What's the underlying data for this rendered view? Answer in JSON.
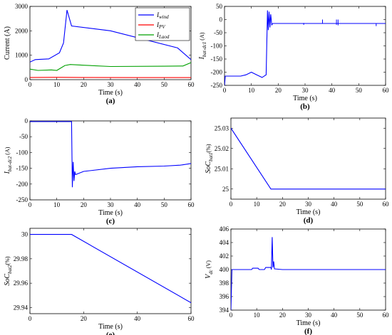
{
  "chart_data": [
    {
      "id": "a",
      "panel_label": "(a)",
      "type": "line",
      "xlabel": "Time (s)",
      "ylabel": "Current (A)",
      "xlim": [
        0,
        60
      ],
      "ylim": [
        0,
        3000
      ],
      "xticks": [
        "0",
        "10",
        "20",
        "30",
        "40",
        "50",
        "60"
      ],
      "yticks": [
        "0",
        "1000",
        "2000",
        "3000"
      ],
      "grid": false,
      "legend": "top-right",
      "series": [
        {
          "name": "I_wind",
          "label": "I",
          "sub": "wind",
          "color": "#0000ff",
          "points": [
            [
              0,
              720
            ],
            [
              2,
              820
            ],
            [
              7,
              850
            ],
            [
              11,
              1100
            ],
            [
              12.5,
              1500
            ],
            [
              13.8,
              2850
            ],
            [
              15.5,
              2200
            ],
            [
              30,
              2000
            ],
            [
              55,
              1300
            ],
            [
              60,
              820
            ]
          ]
        },
        {
          "name": "I_PV",
          "label": "I",
          "sub": "PV",
          "color": "#ff0000",
          "points": [
            [
              0,
              90
            ],
            [
              10,
              95
            ],
            [
              20,
              90
            ],
            [
              40,
              85
            ],
            [
              60,
              85
            ]
          ]
        },
        {
          "name": "I_Laod",
          "label": "I",
          "sub": "Laod",
          "color": "#00a000",
          "points": [
            [
              0,
              430
            ],
            [
              3,
              380
            ],
            [
              8,
              400
            ],
            [
              10,
              380
            ],
            [
              13,
              580
            ],
            [
              15,
              620
            ],
            [
              20,
              590
            ],
            [
              30,
              540
            ],
            [
              50,
              550
            ],
            [
              57,
              560
            ],
            [
              60,
              700
            ]
          ]
        }
      ]
    },
    {
      "id": "b",
      "panel_label": "(b)",
      "type": "line",
      "xlabel": "Time (s)",
      "ylabel": "I",
      "ylabel_sub": "bat-dc1",
      "ylabel_unit": " (A)",
      "xlim": [
        0,
        60
      ],
      "ylim": [
        -250,
        50
      ],
      "xticks": [
        "0",
        "10",
        "20",
        "30",
        "40",
        "50",
        "60"
      ],
      "yticks": [
        "-250",
        "-200",
        "-150",
        "-100",
        "-50",
        "0",
        "50"
      ],
      "grid": false,
      "series": [
        {
          "color": "#0000ff",
          "points": [
            [
              0,
              -250
            ],
            [
              0.3,
              -215
            ],
            [
              6,
              -215
            ],
            [
              8,
              -210
            ],
            [
              10,
              -200
            ],
            [
              12,
              -210
            ],
            [
              14,
              -220
            ],
            [
              15.5,
              -210
            ],
            [
              16,
              35
            ],
            [
              16.3,
              -40
            ],
            [
              16.6,
              30
            ],
            [
              16.9,
              -30
            ],
            [
              17.2,
              20
            ],
            [
              17.6,
              -20
            ],
            [
              18,
              -15
            ],
            [
              60,
              -15
            ]
          ],
          "spikes": [
            [
              29.5,
              -13,
              -20
            ],
            [
              36.5,
              0,
              -15
            ],
            [
              41.7,
              0,
              -20
            ],
            [
              42.3,
              0,
              -22
            ],
            [
              56.5,
              -15,
              -25
            ]
          ]
        }
      ]
    },
    {
      "id": "c",
      "panel_label": "(c)",
      "type": "line",
      "xlabel": "Time (s)",
      "ylabel": "I",
      "ylabel_sub": "bat-dc2",
      "ylabel_unit": " (A)",
      "xlim": [
        0,
        60
      ],
      "ylim": [
        -250,
        0
      ],
      "xticks": [
        "0",
        "10",
        "20",
        "30",
        "40",
        "50",
        "60"
      ],
      "yticks": [
        "-250",
        "-200",
        "-150",
        "-100",
        "-50",
        "0"
      ],
      "grid": false,
      "series": [
        {
          "color": "#0000ff",
          "points": [
            [
              0,
              -2
            ],
            [
              15.5,
              -2
            ],
            [
              15.8,
              -210
            ],
            [
              16.1,
              -130
            ],
            [
              16.4,
              -190
            ],
            [
              16.7,
              -160
            ],
            [
              17,
              -170
            ],
            [
              20,
              -160
            ],
            [
              30,
              -150
            ],
            [
              40,
              -145
            ],
            [
              50,
              -143
            ],
            [
              56,
              -140
            ],
            [
              60,
              -135
            ]
          ]
        }
      ]
    },
    {
      "id": "d",
      "panel_label": "(d)",
      "type": "line",
      "xlabel": "Time (s)",
      "ylabel": "SoC",
      "ylabel_sub": "bat1",
      "ylabel_unit": "(%)",
      "xlim": [
        0,
        60
      ],
      "ylim": [
        24.995,
        25.035
      ],
      "xticks": [
        "0",
        "10",
        "20",
        "30",
        "40",
        "50",
        "60"
      ],
      "yticks": [
        "25",
        "25.01",
        "25.02",
        "25.03"
      ],
      "grid": false,
      "series": [
        {
          "color": "#0000ff",
          "points": [
            [
              0,
              25.03
            ],
            [
              15.5,
              25.0
            ],
            [
              60,
              25.0
            ]
          ]
        }
      ]
    },
    {
      "id": "e",
      "panel_label": "(e)",
      "type": "line",
      "xlabel": "Time (s)",
      "ylabel": "SoC",
      "ylabel_sub": "bat2",
      "ylabel_unit": "(%)",
      "xlim": [
        0,
        60
      ],
      "ylim": [
        29.935,
        30.005
      ],
      "xticks": [
        "0",
        "20",
        "40",
        "60"
      ],
      "yticks": [
        "29.94",
        "29.96",
        "29.98",
        "30"
      ],
      "grid": false,
      "series": [
        {
          "color": "#0000ff",
          "points": [
            [
              0,
              30.0
            ],
            [
              15.5,
              30.0
            ],
            [
              60,
              29.944
            ]
          ]
        }
      ]
    },
    {
      "id": "f",
      "panel_label": "(f)",
      "type": "line",
      "xlabel": "Time (s)",
      "ylabel": "V",
      "ylabel_sub": "dc",
      "ylabel_unit": " (V)",
      "xlim": [
        0,
        60
      ],
      "ylim": [
        394,
        406
      ],
      "xticks": [
        "0",
        "10",
        "20",
        "30",
        "40",
        "50",
        "60"
      ],
      "yticks": [
        "394",
        "396",
        "398",
        "400",
        "402",
        "404",
        "406"
      ],
      "grid": false,
      "series": [
        {
          "color": "#0000ff",
          "points": [
            [
              0,
              394
            ],
            [
              0.4,
              400
            ],
            [
              8,
              400
            ],
            [
              8.5,
              400.2
            ],
            [
              10.5,
              400.2
            ],
            [
              11,
              400
            ],
            [
              13,
              400
            ],
            [
              13.5,
              400.3
            ],
            [
              15.5,
              400.3
            ],
            [
              15.7,
              400
            ],
            [
              16,
              404.8
            ],
            [
              16.3,
              400.3
            ],
            [
              16.6,
              401.2
            ],
            [
              16.9,
              400.1
            ],
            [
              20,
              400
            ],
            [
              60,
              400
            ]
          ]
        }
      ]
    }
  ]
}
